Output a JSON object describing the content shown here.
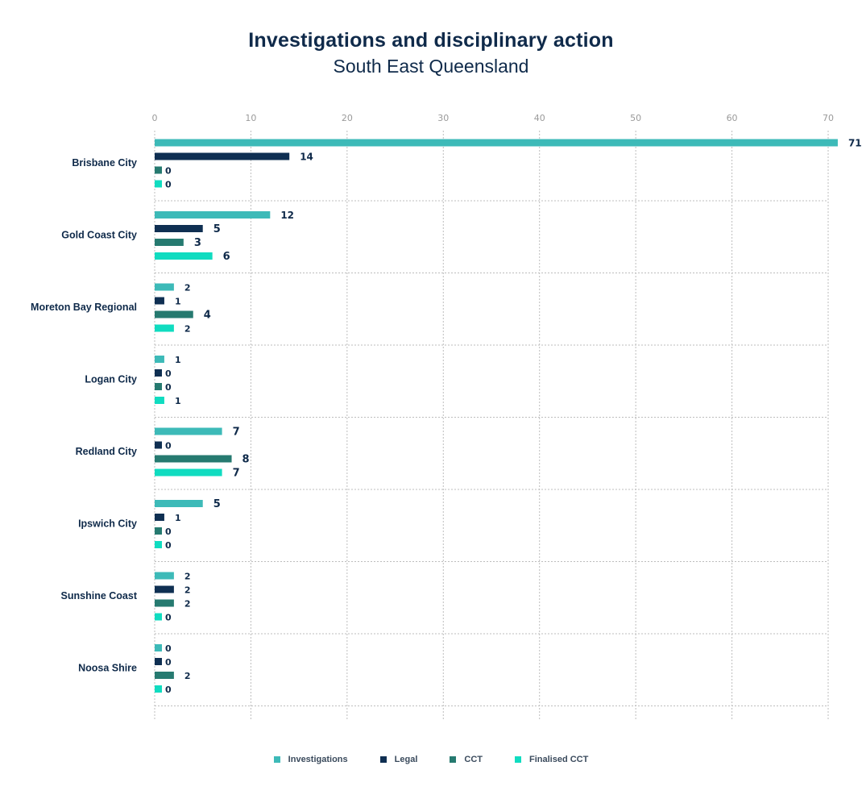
{
  "chart_data": {
    "type": "bar",
    "orientation": "horizontal",
    "title": "Investigations and disciplinary action",
    "subtitle": "South East Queensland",
    "categories": [
      "Brisbane City",
      "Gold Coast City",
      "Moreton Bay Regional",
      "Logan City",
      "Redland City",
      "Ipswich City",
      "Sunshine Coast",
      "Noosa Shire"
    ],
    "series": [
      {
        "name": "Investigations",
        "color": "#3dbab8",
        "values": [
          71,
          12,
          2,
          1,
          7,
          5,
          2,
          0
        ]
      },
      {
        "name": "Legal",
        "color": "#0f2f52",
        "values": [
          14,
          5,
          1,
          0,
          0,
          1,
          2,
          0
        ]
      },
      {
        "name": "CCT",
        "color": "#267a70",
        "values": [
          0,
          3,
          4,
          0,
          8,
          0,
          2,
          2
        ]
      },
      {
        "name": "Finalised CCT",
        "color": "#10dcc0",
        "values": [
          0,
          6,
          2,
          1,
          7,
          0,
          0,
          0
        ]
      }
    ],
    "x_ticks": [
      "0",
      "10",
      "20",
      "30",
      "40",
      "50",
      "60",
      "70"
    ],
    "xlim": [
      0,
      70
    ],
    "grid": true,
    "legend_position": "bottom"
  }
}
